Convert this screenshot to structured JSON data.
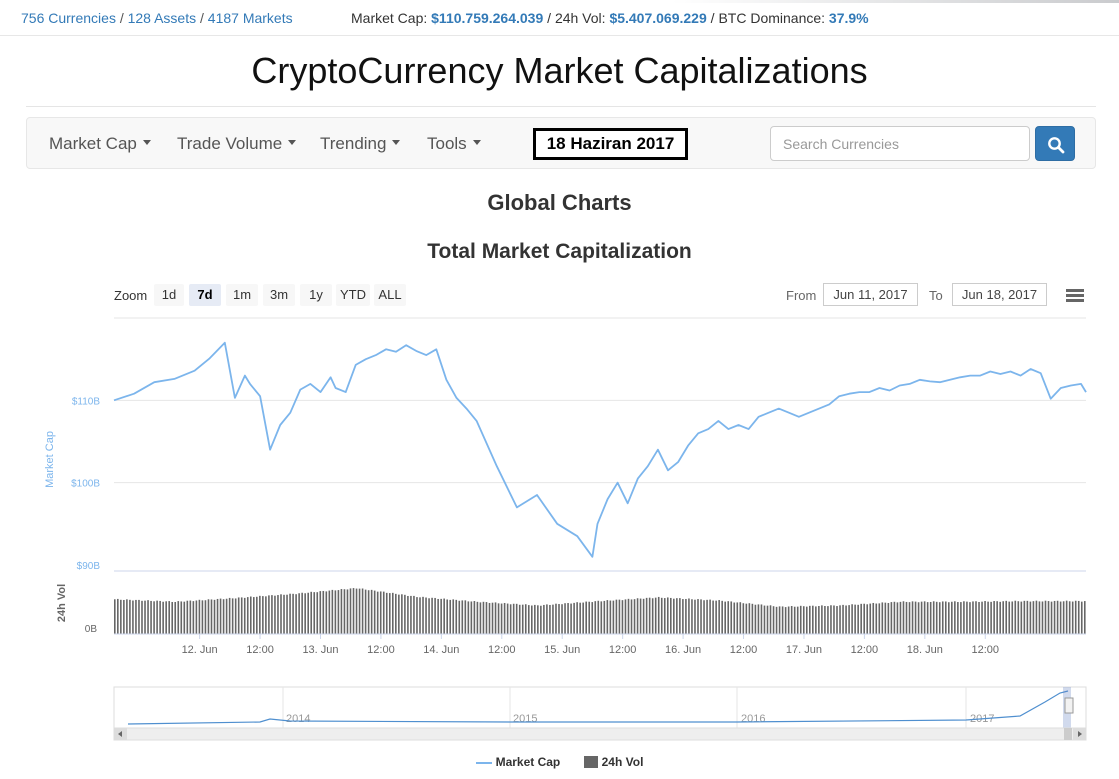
{
  "topbar": {
    "currencies": "756 Currencies",
    "assets": "128 Assets",
    "markets": "4187 Markets",
    "market_cap_label": "Market Cap:",
    "market_cap_value": "$110.759.264.039",
    "vol_label": "24h Vol:",
    "vol_value": "$5.407.069.229",
    "dominance_label": "BTC Dominance:",
    "dominance_value": "37.9%"
  },
  "page_title": "CryptoCurrency Market Capitalizations",
  "nav": {
    "items": [
      "Market Cap",
      "Trade Volume",
      "Trending",
      "Tools"
    ],
    "date_label": "18 Haziran 2017",
    "search_placeholder": "Search Currencies"
  },
  "section_title": "Global Charts",
  "chart_title": "Total Market Capitalization",
  "controls": {
    "zoom_label": "Zoom",
    "zoom_options": [
      "1d",
      "7d",
      "1m",
      "3m",
      "1y",
      "YTD",
      "ALL"
    ],
    "active_zoom": "7d",
    "from_label": "From",
    "from_value": "Jun 11, 2017",
    "to_label": "To",
    "to_value": "Jun 18, 2017"
  },
  "legend": {
    "market_cap": "Market Cap",
    "volume": "24h Vol"
  },
  "chart_data": {
    "type": "line",
    "x_range": [
      "2017-06-11T07:00",
      "2017-06-18T08:00"
    ],
    "x_ticks": [
      "12. Jun",
      "12:00",
      "13. Jun",
      "12:00",
      "14. Jun",
      "12:00",
      "15. Jun",
      "12:00",
      "16. Jun",
      "12:00",
      "17. Jun",
      "12:00",
      "18. Jun",
      "12:00"
    ],
    "market_cap": {
      "name": "Market Cap",
      "axis_title": "Market Cap",
      "y_ticks": [
        "$110B",
        "$100B",
        "$90B"
      ],
      "ylim": [
        90,
        120
      ],
      "color": "#7cb5ec",
      "hours": [
        0,
        4,
        8,
        12,
        16,
        19,
        22,
        24,
        26,
        27,
        29,
        31,
        33,
        35,
        37,
        39,
        41,
        43,
        44,
        46,
        48,
        50,
        52,
        54,
        56,
        58,
        60,
        62,
        64,
        66,
        68,
        70,
        72,
        76,
        80,
        84,
        88,
        92,
        95,
        96,
        98,
        100,
        102,
        104,
        106,
        108,
        110,
        112,
        114,
        116,
        118,
        120,
        122,
        124,
        126,
        128,
        130,
        132,
        134,
        136,
        138,
        140,
        142,
        144,
        146,
        148,
        150,
        152,
        154,
        156,
        158,
        160,
        162,
        164,
        166,
        168,
        170,
        172,
        174,
        176,
        178,
        180,
        182,
        184,
        186,
        188,
        190,
        192,
        193
      ],
      "values": [
        110.0,
        110.8,
        112.2,
        112.6,
        113.6,
        115.1,
        117.0,
        110.3,
        113.0,
        112.0,
        110.5,
        104.0,
        107.0,
        108.5,
        111.3,
        112.0,
        111.0,
        112.8,
        111.5,
        111.0,
        114.3,
        115.0,
        115.5,
        116.2,
        115.9,
        116.7,
        116.0,
        115.5,
        116.2,
        112.5,
        110.3,
        109.0,
        107.5,
        102.0,
        97.0,
        98.5,
        95.0,
        93.5,
        91.0,
        95.0,
        98.0,
        100.0,
        97.5,
        100.5,
        102.0,
        104.0,
        101.5,
        102.5,
        104.5,
        106.0,
        106.5,
        107.5,
        106.5,
        107.0,
        106.5,
        108.0,
        108.5,
        109.0,
        108.5,
        108.0,
        108.5,
        109.0,
        109.5,
        110.5,
        110.8,
        111.0,
        111.0,
        111.5,
        111.2,
        111.8,
        112.0,
        112.5,
        112.3,
        112.2,
        112.5,
        112.8,
        113.0,
        113.0,
        113.5,
        113.2,
        113.5,
        113.0,
        113.8,
        113.3,
        110.2,
        111.5,
        111.8,
        112.0,
        111.0
      ]
    },
    "volume": {
      "name": "24h Vol",
      "axis_title": "24h Vol",
      "y_ticks": [
        "0B"
      ],
      "color": "#666666",
      "unit": "relative (B)",
      "hours": [
        0,
        12,
        24,
        36,
        48,
        60,
        72,
        84,
        96,
        108,
        120,
        132,
        144,
        156,
        168,
        180,
        193
      ],
      "values": [
        5.6,
        5.2,
        5.8,
        6.5,
        7.4,
        6.0,
        5.2,
        4.6,
        5.3,
        5.9,
        5.4,
        4.4,
        4.6,
        5.2,
        5.2,
        5.3,
        5.3
      ]
    },
    "navigator": {
      "years": [
        "2014",
        "2015",
        "2016",
        "2017"
      ]
    },
    "grid": true
  }
}
